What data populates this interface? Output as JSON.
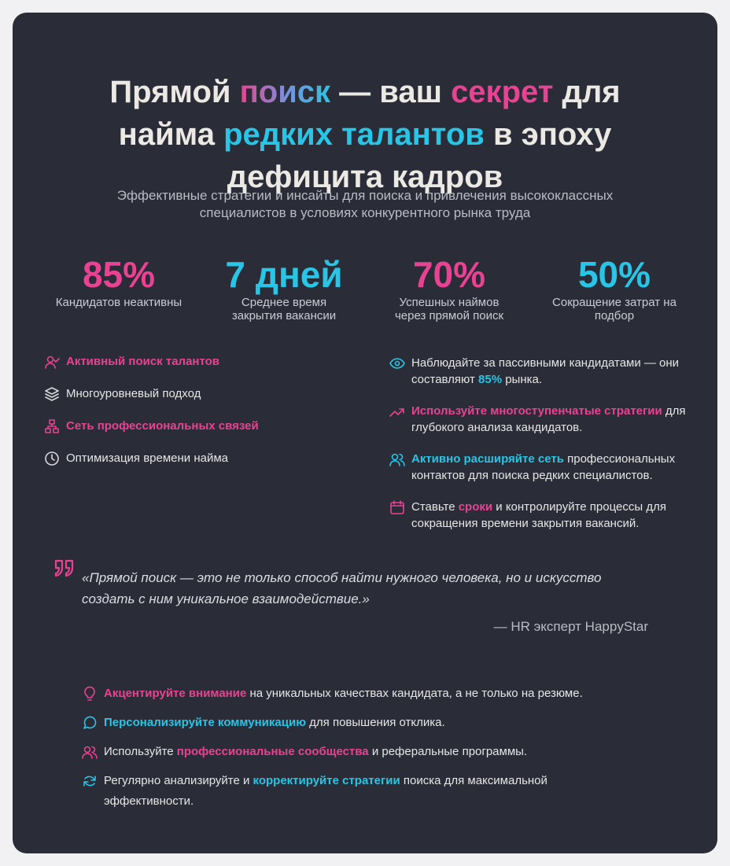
{
  "title": [
    {
      "text": "Прямой "
    },
    {
      "text": "поиск",
      "color": "gradient"
    },
    {
      "text": " — ваш "
    },
    {
      "text": "секрет",
      "color": "#e84393"
    },
    {
      "text": " для найма "
    },
    {
      "text": "редких талантов",
      "color": "#29c5e6"
    },
    {
      "text": " в эпоху дефицита кадров"
    }
  ],
  "subtitle": "Эффективные стратегии и инсайты для поиска и привлечения высококлассных специалистов в условиях конкурентного рынка труда",
  "stats": [
    {
      "value": "85%",
      "label": "Кандидатов неактивны",
      "color": "#e84393"
    },
    {
      "value": "7 дней",
      "label": "Среднее время закрытия вакансии",
      "color": "#29c5e6"
    },
    {
      "value": "70%",
      "label": "Успешных наймов через прямой поиск",
      "color": "#e84393"
    },
    {
      "value": "50%",
      "label": "Сокращение затрат на подбор",
      "color": "#29c5e6"
    }
  ],
  "left_list": [
    {
      "text": [
        {
          "text": "Активный поиск талантов",
          "color": "#e84393"
        }
      ],
      "icon_color": "#e84393"
    },
    {
      "text": [
        {
          "text": "Многоуровневый подход"
        }
      ],
      "icon_color": "#d8d8dc"
    },
    {
      "text": [
        {
          "text": "Сеть профессиональных связей",
          "color": "#e84393"
        }
      ],
      "icon_color": "#e84393"
    },
    {
      "text": [
        {
          "text": "Оптимизация времени найма"
        }
      ],
      "icon_color": "#d8d8dc"
    }
  ],
  "right_list": [
    {
      "text": [
        {
          "text": "Наблюдайте за пассивными кандидатами — они составляют "
        },
        {
          "text": "85%",
          "color": "#29c5e6"
        },
        {
          "text": " рынка."
        }
      ],
      "icon_color": "#29c5e6"
    },
    {
      "text": [
        {
          "text": "Используйте многоступенчатые стратегии",
          "color": "#e84393"
        },
        {
          "text": " для глубокого анализа кандидатов."
        }
      ],
      "icon_color": "#e84393"
    },
    {
      "text": [
        {
          "text": "Активно расширяйте сеть",
          "color": "#29c5e6"
        },
        {
          "text": " профессиональных контактов для поиска редких специалистов."
        }
      ],
      "icon_color": "#29c5e6"
    },
    {
      "text": [
        {
          "text": "Ставьте "
        },
        {
          "text": "сроки",
          "color": "#e84393"
        },
        {
          "text": " и контролируйте процессы для сокращения времени закрытия вакансий."
        }
      ],
      "icon_color": "#e84393"
    }
  ],
  "quote": {
    "text": "«Прямой поиск — это не только способ найти нужного человека, но и искусство создать с ним уникальное взаимодействие.»",
    "author": "— HR эксперт HappyStar",
    "color": "#e84393"
  },
  "tips": [
    {
      "text": [
        {
          "text": "Акцентируйте внимание",
          "color": "#e84393"
        },
        {
          "text": " на уникальных качествах кандидата, а не только на резюме."
        }
      ],
      "icon_color": "#e84393"
    },
    {
      "text": [
        {
          "text": "Персонализируйте коммуникацию",
          "color": "#29c5e6"
        },
        {
          "text": " для повышения отклика."
        }
      ],
      "icon_color": "#29c5e6"
    },
    {
      "text": [
        {
          "text": "Используйте "
        },
        {
          "text": "профессиональные сообщества",
          "color": "#e84393"
        },
        {
          "text": " и реферальные программы."
        }
      ],
      "icon_color": "#e84393"
    },
    {
      "text": [
        {
          "text": "Регулярно анализируйте и "
        },
        {
          "text": "корректируйте стратегии",
          "color": "#29c5e6"
        },
        {
          "text": " поиска для максимальной эффективности."
        }
      ],
      "icon_color": "#29c5e6"
    }
  ]
}
